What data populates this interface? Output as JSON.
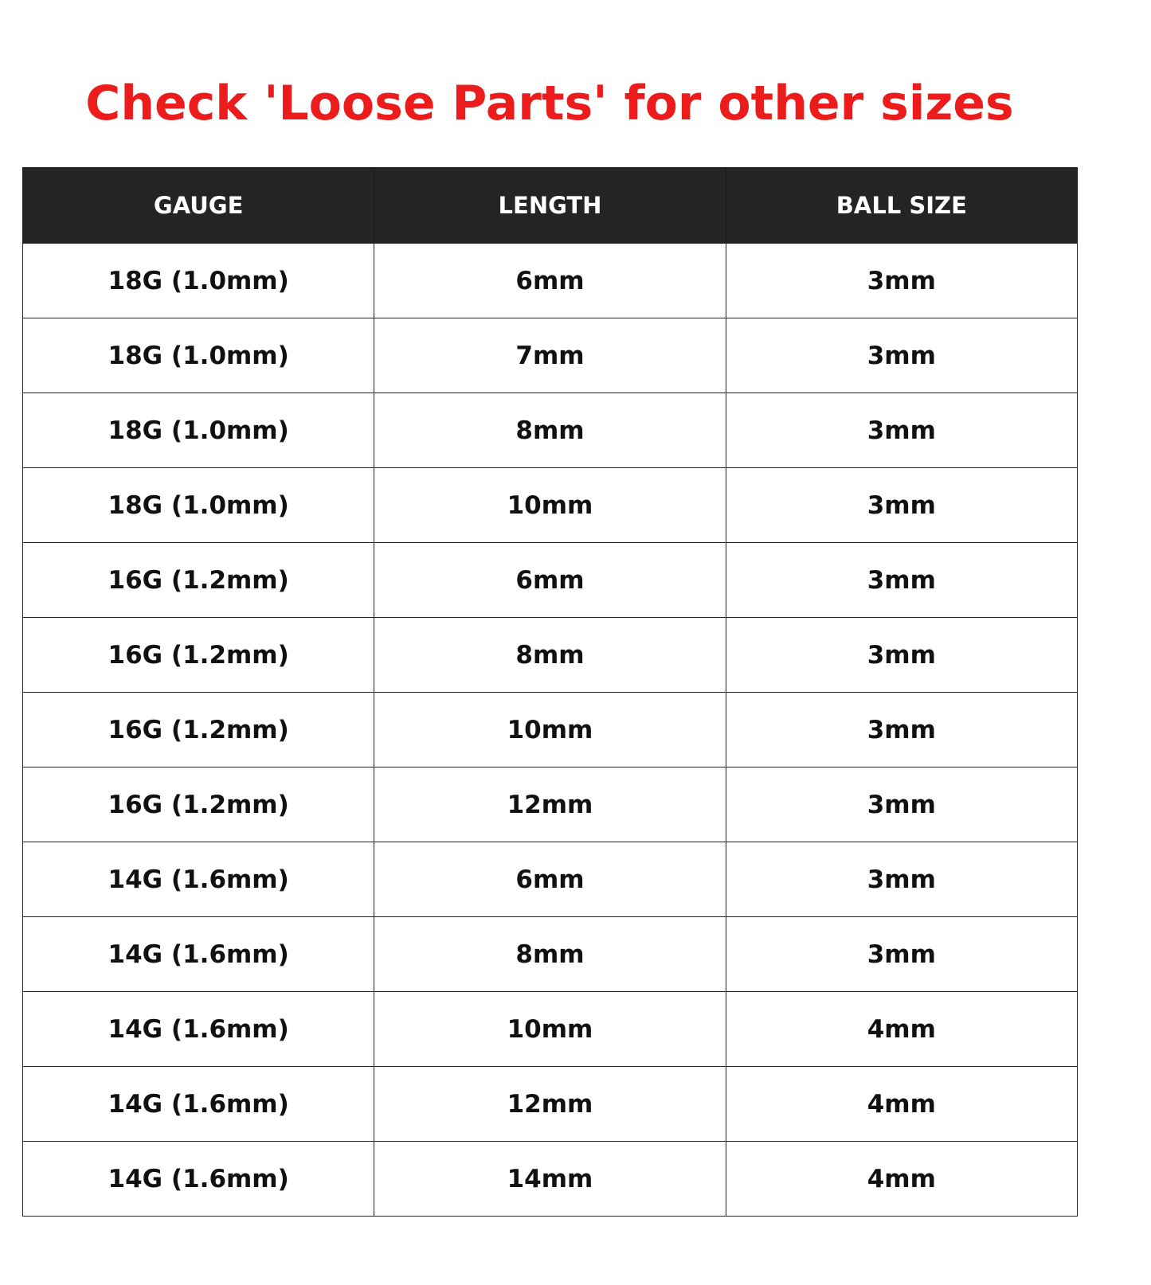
{
  "title": "Check 'Loose Parts' for other sizes",
  "colors": {
    "title": "#ec1c1c",
    "header_bg": "#242424",
    "header_text": "#ffffff"
  },
  "table": {
    "headers": [
      "GAUGE",
      "LENGTH",
      "BALL SIZE"
    ],
    "rows": [
      [
        "18G (1.0mm)",
        "6mm",
        "3mm"
      ],
      [
        "18G (1.0mm)",
        "7mm",
        "3mm"
      ],
      [
        "18G (1.0mm)",
        "8mm",
        "3mm"
      ],
      [
        "18G (1.0mm)",
        "10mm",
        "3mm"
      ],
      [
        "16G (1.2mm)",
        "6mm",
        "3mm"
      ],
      [
        "16G (1.2mm)",
        "8mm",
        "3mm"
      ],
      [
        "16G (1.2mm)",
        "10mm",
        "3mm"
      ],
      [
        "16G (1.2mm)",
        "12mm",
        "3mm"
      ],
      [
        "14G (1.6mm)",
        "6mm",
        "3mm"
      ],
      [
        "14G (1.6mm)",
        "8mm",
        "3mm"
      ],
      [
        "14G (1.6mm)",
        "10mm",
        "4mm"
      ],
      [
        "14G (1.6mm)",
        "12mm",
        "4mm"
      ],
      [
        "14G (1.6mm)",
        "14mm",
        "4mm"
      ]
    ]
  }
}
